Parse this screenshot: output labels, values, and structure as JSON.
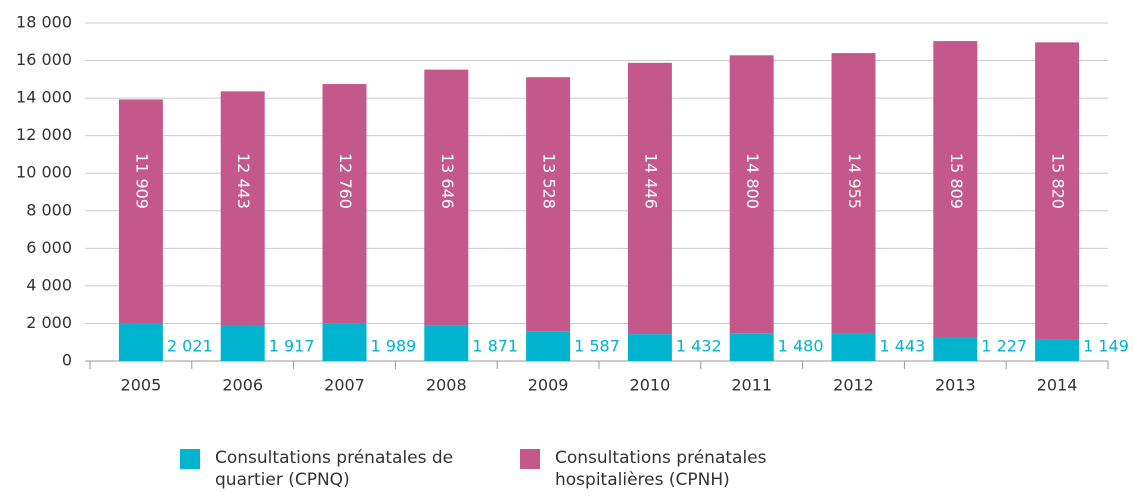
{
  "chart_data": {
    "type": "stacked_bar",
    "categories": [
      "2005",
      "2006",
      "2007",
      "2008",
      "2009",
      "2010",
      "2011",
      "2012",
      "2013",
      "2014"
    ],
    "series": [
      {
        "name": "Consultations prénatales de quartier (CPNQ)",
        "color": "#00b4d0",
        "values": [
          2021,
          1917,
          1989,
          1871,
          1587,
          1432,
          1480,
          1443,
          1227,
          1149
        ],
        "value_labels": [
          "2 021",
          "1 917",
          "1 989",
          "1 871",
          "1 587",
          "1 432",
          "1 480",
          "1 443",
          "1 227",
          "1 149"
        ]
      },
      {
        "name": "Consultations prénatales hospitalières (CPNH)",
        "color": "#c4588a",
        "values": [
          11909,
          12443,
          12760,
          13646,
          13528,
          14446,
          14800,
          14955,
          15809,
          15820
        ],
        "value_labels": [
          "11 909",
          "12 443",
          "12 760",
          "13 646",
          "13 528",
          "14 446",
          "14 800",
          "14 955",
          "15 809",
          "15 820"
        ]
      }
    ],
    "ylim": [
      0,
      18000
    ],
    "yticks": [
      0,
      {
        "value": 2000,
        "label": "2 000"
      },
      {
        "value": 4000,
        "label": "4 000"
      },
      {
        "value": 6000,
        "label": "6 000"
      },
      {
        "value": 8000,
        "label": "8 000"
      },
      {
        "value": 10000,
        "label": "10 000"
      },
      {
        "value": 12000,
        "label": "12 000"
      },
      {
        "value": 14000,
        "label": "14 000"
      },
      {
        "value": 16000,
        "label": "16 000"
      },
      {
        "value": 18000,
        "label": "18 000"
      }
    ],
    "grid": true
  }
}
